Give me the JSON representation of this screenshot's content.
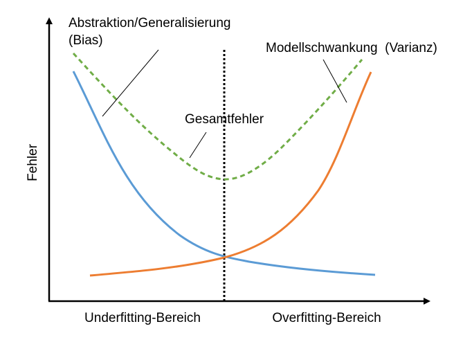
{
  "diagram": {
    "ylabel": "Fehler",
    "x_regions": [
      "Underfitting-Bereich",
      "Overfitting-Bereich"
    ],
    "bias_label_line1": "Abstraktion/Generalisierung",
    "bias_label_line2": "(Bias)",
    "variance_label": "Modellschwankung  (Varianz)",
    "total_label": "Gesamtfehler",
    "colors": {
      "bias": "#5b9bd5",
      "variance": "#ed7d31",
      "total": "#70ad47",
      "axis": "#000000"
    }
  }
}
